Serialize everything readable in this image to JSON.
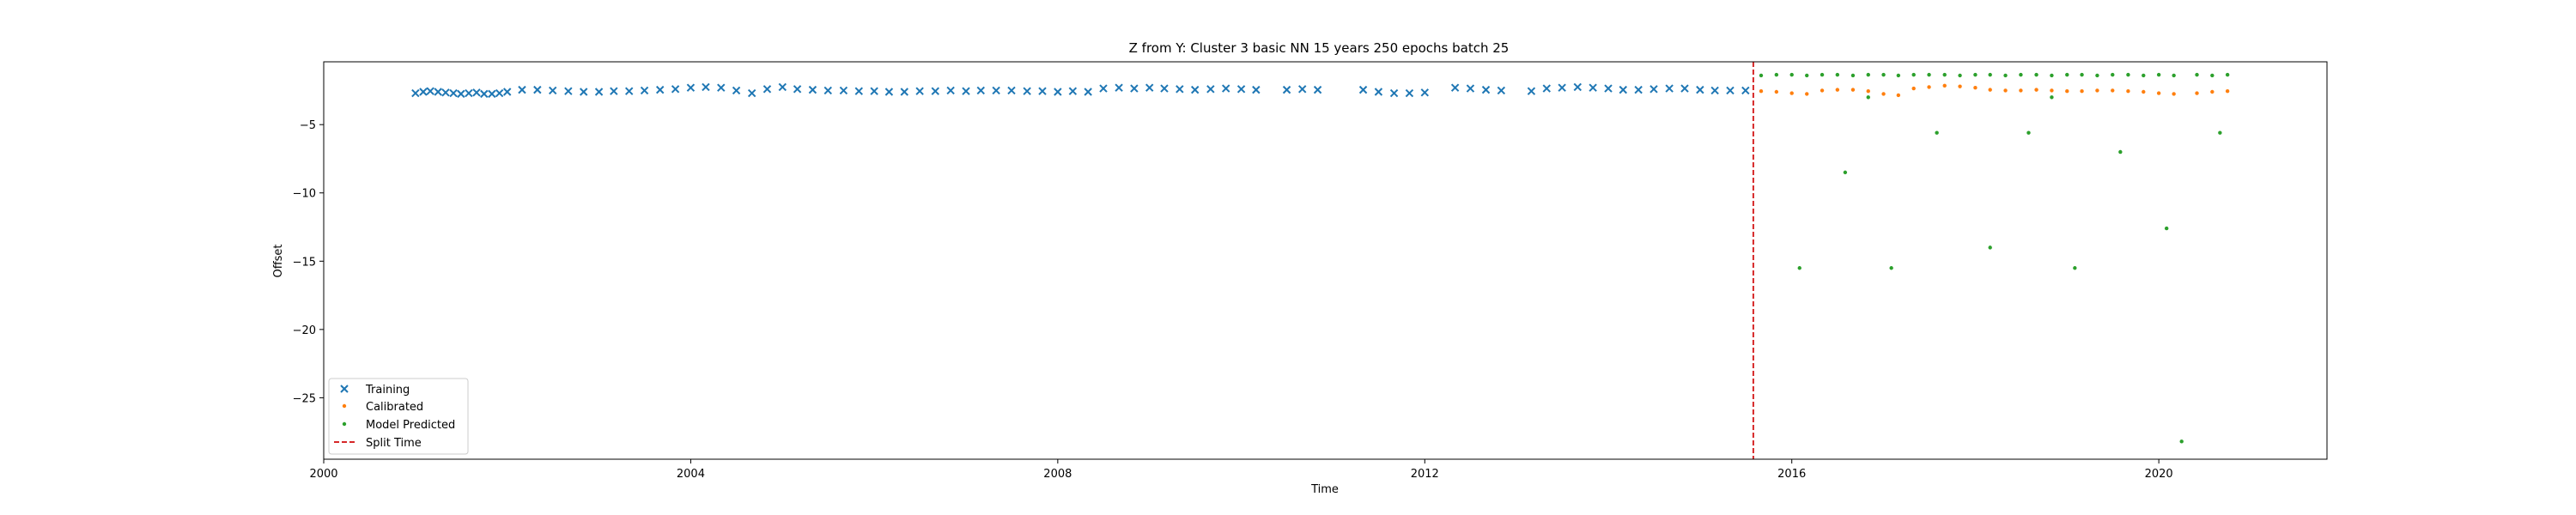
{
  "chart_data": {
    "type": "scatter",
    "title": "Z from Y: Cluster 3 basic NN 15 years 250 epochs batch 25",
    "xlabel": "Time",
    "ylabel": "Offset",
    "xlim": [
      "2000-01-01",
      "2021-11-01"
    ],
    "ylim": [
      -29.5,
      -0.4
    ],
    "xticks": [
      "2000",
      "2004",
      "2008",
      "2012",
      "2016",
      "2020"
    ],
    "yticks": [
      -5,
      -10,
      -15,
      -20,
      -25
    ],
    "grid": false,
    "legend_position": "lower-left",
    "split_time": "2015-08-01",
    "series": [
      {
        "name": "Training",
        "marker": "x",
        "color": "#1f77b4",
        "points": [
          [
            "2001-01-01",
            -2.7
          ],
          [
            "2001-02-01",
            -2.6
          ],
          [
            "2001-03-01",
            -2.55
          ],
          [
            "2001-04-01",
            -2.6
          ],
          [
            "2001-05-01",
            -2.65
          ],
          [
            "2001-06-01",
            -2.7
          ],
          [
            "2001-07-01",
            -2.75
          ],
          [
            "2001-08-01",
            -2.7
          ],
          [
            "2001-09-01",
            -2.65
          ],
          [
            "2001-10-01",
            -2.75
          ],
          [
            "2001-11-01",
            -2.75
          ],
          [
            "2001-12-01",
            -2.7
          ],
          [
            "2002-01-01",
            -2.6
          ],
          [
            "2002-03-01",
            -2.45
          ],
          [
            "2002-05-01",
            -2.45
          ],
          [
            "2002-07-01",
            -2.5
          ],
          [
            "2002-09-01",
            -2.55
          ],
          [
            "2002-11-01",
            -2.6
          ],
          [
            "2003-01-01",
            -2.6
          ],
          [
            "2003-03-01",
            -2.55
          ],
          [
            "2003-05-01",
            -2.55
          ],
          [
            "2003-07-01",
            -2.5
          ],
          [
            "2003-09-01",
            -2.45
          ],
          [
            "2003-11-01",
            -2.4
          ],
          [
            "2004-01-01",
            -2.3
          ],
          [
            "2004-03-01",
            -2.25
          ],
          [
            "2004-05-01",
            -2.3
          ],
          [
            "2004-07-01",
            -2.5
          ],
          [
            "2004-09-01",
            -2.7
          ],
          [
            "2004-11-01",
            -2.4
          ],
          [
            "2005-01-01",
            -2.25
          ],
          [
            "2005-03-01",
            -2.4
          ],
          [
            "2005-05-01",
            -2.45
          ],
          [
            "2005-07-01",
            -2.5
          ],
          [
            "2005-09-01",
            -2.5
          ],
          [
            "2005-11-01",
            -2.55
          ],
          [
            "2006-01-01",
            -2.55
          ],
          [
            "2006-03-01",
            -2.6
          ],
          [
            "2006-05-01",
            -2.6
          ],
          [
            "2006-07-01",
            -2.55
          ],
          [
            "2006-09-01",
            -2.55
          ],
          [
            "2006-11-01",
            -2.5
          ],
          [
            "2007-01-01",
            -2.55
          ],
          [
            "2007-03-01",
            -2.5
          ],
          [
            "2007-05-01",
            -2.5
          ],
          [
            "2007-07-01",
            -2.5
          ],
          [
            "2007-09-01",
            -2.55
          ],
          [
            "2007-11-01",
            -2.55
          ],
          [
            "2008-01-01",
            -2.6
          ],
          [
            "2008-03-01",
            -2.55
          ],
          [
            "2008-05-01",
            -2.6
          ],
          [
            "2008-07-01",
            -2.35
          ],
          [
            "2008-09-01",
            -2.3
          ],
          [
            "2008-11-01",
            -2.35
          ],
          [
            "2009-01-01",
            -2.3
          ],
          [
            "2009-03-01",
            -2.35
          ],
          [
            "2009-05-01",
            -2.4
          ],
          [
            "2009-07-01",
            -2.45
          ],
          [
            "2009-09-01",
            -2.4
          ],
          [
            "2009-11-01",
            -2.35
          ],
          [
            "2010-01-01",
            -2.4
          ],
          [
            "2010-03-01",
            -2.45
          ],
          [
            "2010-07-01",
            -2.45
          ],
          [
            "2010-09-01",
            -2.4
          ],
          [
            "2010-11-01",
            -2.45
          ],
          [
            "2011-05-01",
            -2.45
          ],
          [
            "2011-07-01",
            -2.6
          ],
          [
            "2011-09-01",
            -2.7
          ],
          [
            "2011-11-01",
            -2.7
          ],
          [
            "2012-01-01",
            -2.65
          ],
          [
            "2012-05-01",
            -2.3
          ],
          [
            "2012-07-01",
            -2.35
          ],
          [
            "2012-09-01",
            -2.45
          ],
          [
            "2012-11-01",
            -2.5
          ],
          [
            "2013-03-01",
            -2.55
          ],
          [
            "2013-05-01",
            -2.35
          ],
          [
            "2013-07-01",
            -2.3
          ],
          [
            "2013-09-01",
            -2.25
          ],
          [
            "2013-11-01",
            -2.3
          ],
          [
            "2014-01-01",
            -2.35
          ],
          [
            "2014-03-01",
            -2.45
          ],
          [
            "2014-05-01",
            -2.45
          ],
          [
            "2014-07-01",
            -2.4
          ],
          [
            "2014-09-01",
            -2.35
          ],
          [
            "2014-11-01",
            -2.35
          ],
          [
            "2015-01-01",
            -2.45
          ],
          [
            "2015-03-01",
            -2.5
          ],
          [
            "2015-05-01",
            -2.5
          ],
          [
            "2015-07-01",
            -2.5
          ]
        ]
      },
      {
        "name": "Calibrated",
        "marker": "dot",
        "color": "#ff7f0e",
        "points": [
          [
            "2015-09-01",
            -2.55
          ],
          [
            "2015-11-01",
            -2.6
          ],
          [
            "2016-01-01",
            -2.7
          ],
          [
            "2016-03-01",
            -2.75
          ],
          [
            "2016-05-01",
            -2.5
          ],
          [
            "2016-07-01",
            -2.45
          ],
          [
            "2016-09-01",
            -2.45
          ],
          [
            "2016-11-01",
            -2.55
          ],
          [
            "2017-01-01",
            -2.75
          ],
          [
            "2017-03-01",
            -2.85
          ],
          [
            "2017-05-01",
            -2.35
          ],
          [
            "2017-07-01",
            -2.25
          ],
          [
            "2017-09-01",
            -2.15
          ],
          [
            "2017-11-01",
            -2.2
          ],
          [
            "2018-01-01",
            -2.3
          ],
          [
            "2018-03-01",
            -2.45
          ],
          [
            "2018-05-01",
            -2.5
          ],
          [
            "2018-07-01",
            -2.5
          ],
          [
            "2018-09-01",
            -2.45
          ],
          [
            "2018-11-01",
            -2.5
          ],
          [
            "2019-01-01",
            -2.55
          ],
          [
            "2019-03-01",
            -2.55
          ],
          [
            "2019-05-01",
            -2.5
          ],
          [
            "2019-07-01",
            -2.5
          ],
          [
            "2019-09-01",
            -2.55
          ],
          [
            "2019-11-01",
            -2.6
          ],
          [
            "2020-01-01",
            -2.7
          ],
          [
            "2020-03-01",
            -2.75
          ],
          [
            "2020-06-01",
            -2.7
          ],
          [
            "2020-08-01",
            -2.6
          ],
          [
            "2020-10-01",
            -2.55
          ]
        ]
      },
      {
        "name": "Model Predicted",
        "marker": "dot",
        "color": "#2ca02c",
        "points": [
          [
            "2015-09-01",
            -1.4
          ],
          [
            "2015-11-01",
            -1.35
          ],
          [
            "2016-01-01",
            -1.35
          ],
          [
            "2016-03-01",
            -1.4
          ],
          [
            "2016-05-01",
            -1.35
          ],
          [
            "2016-07-01",
            -1.35
          ],
          [
            "2016-09-01",
            -1.4
          ],
          [
            "2016-11-01",
            -1.35
          ],
          [
            "2017-01-01",
            -1.35
          ],
          [
            "2017-03-01",
            -1.4
          ],
          [
            "2017-05-01",
            -1.35
          ],
          [
            "2017-07-01",
            -1.35
          ],
          [
            "2017-09-01",
            -1.35
          ],
          [
            "2017-11-01",
            -1.4
          ],
          [
            "2018-01-01",
            -1.35
          ],
          [
            "2018-03-01",
            -1.35
          ],
          [
            "2018-05-01",
            -1.4
          ],
          [
            "2018-07-01",
            -1.35
          ],
          [
            "2018-09-01",
            -1.35
          ],
          [
            "2018-11-01",
            -1.4
          ],
          [
            "2019-01-01",
            -1.35
          ],
          [
            "2019-03-01",
            -1.35
          ],
          [
            "2019-05-01",
            -1.4
          ],
          [
            "2019-07-01",
            -1.35
          ],
          [
            "2019-09-01",
            -1.35
          ],
          [
            "2019-11-01",
            -1.4
          ],
          [
            "2020-01-01",
            -1.35
          ],
          [
            "2020-03-01",
            -1.4
          ],
          [
            "2020-06-01",
            -1.35
          ],
          [
            "2020-08-01",
            -1.4
          ],
          [
            "2020-10-01",
            -1.35
          ],
          [
            "2016-02-01",
            -15.5
          ],
          [
            "2016-08-01",
            -8.5
          ],
          [
            "2016-11-01",
            -3.0
          ],
          [
            "2017-02-01",
            -15.5
          ],
          [
            "2017-08-01",
            -5.6
          ],
          [
            "2018-03-01",
            -14.0
          ],
          [
            "2018-08-01",
            -5.6
          ],
          [
            "2018-11-01",
            -3.0
          ],
          [
            "2019-02-01",
            -15.5
          ],
          [
            "2019-08-01",
            -7.0
          ],
          [
            "2020-02-01",
            -12.6
          ],
          [
            "2020-04-01",
            -28.2
          ],
          [
            "2020-09-01",
            -5.6
          ]
        ]
      }
    ],
    "legend": [
      "Training",
      "Calibrated",
      "Model Predicted",
      "Split Time"
    ],
    "split_color": "#d62728"
  }
}
